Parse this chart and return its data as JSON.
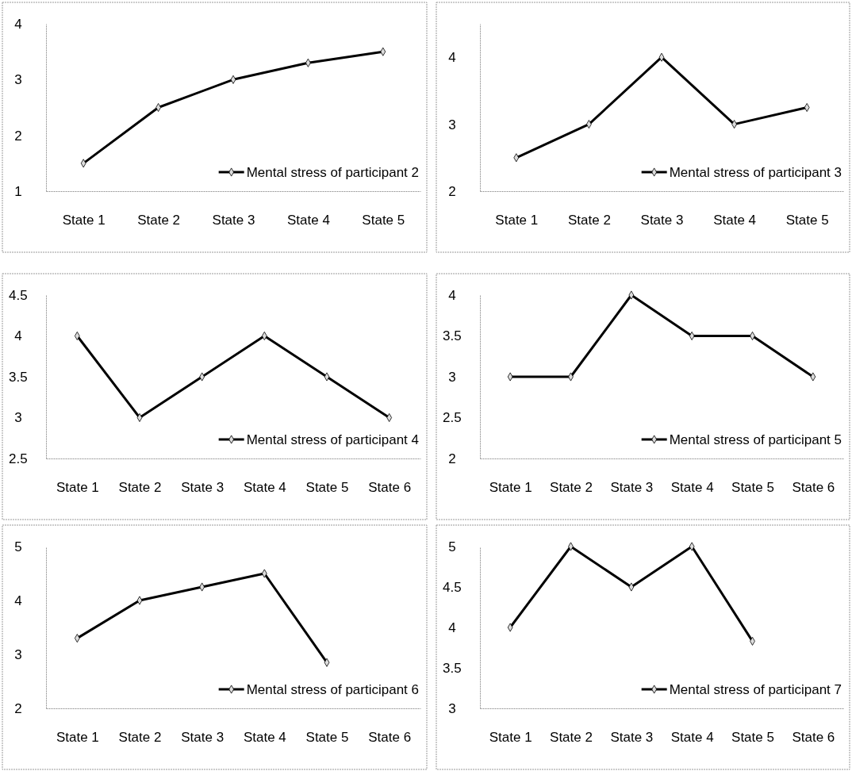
{
  "chart_data": [
    {
      "type": "line",
      "categories": [
        "State 1",
        "State 2",
        "State 3",
        "State 4",
        "State 5"
      ],
      "series": [
        {
          "name": "Mental stress of participant 2",
          "color": "#000000",
          "values": [
            1.5,
            2.5,
            3,
            3.3,
            3.5
          ]
        }
      ],
      "ylim": [
        1,
        4
      ],
      "yticks": [
        1,
        2,
        3,
        4
      ],
      "legend": "bottom right",
      "marker": "diamond",
      "grid": false
    },
    {
      "type": "line",
      "categories": [
        "State 1",
        "State 2",
        "State 3",
        "State 4",
        "State 5"
      ],
      "series": [
        {
          "name": "Mental stress of participant 3",
          "color": "#000000",
          "values": [
            2.5,
            3,
            4,
            3,
            3.25
          ]
        }
      ],
      "ylim": [
        2,
        4.5
      ],
      "yticks": [
        2,
        3,
        4
      ],
      "legend": "bottom right",
      "marker": "diamond",
      "grid": false
    },
    {
      "type": "line",
      "categories": [
        "State 1",
        "State 2",
        "State 3",
        "State 4",
        "State 5",
        "State 6"
      ],
      "series": [
        {
          "name": "Mental stress of participant 4",
          "color": "#000000",
          "values": [
            4,
            3,
            3.5,
            4,
            3.5,
            3
          ]
        }
      ],
      "ylim": [
        2.5,
        4.5
      ],
      "yticks": [
        2.5,
        3,
        3.5,
        4,
        4.5
      ],
      "legend": "bottom right",
      "marker": "diamond",
      "grid": false
    },
    {
      "type": "line",
      "categories": [
        "State 1",
        "State 2",
        "State 3",
        "State 4",
        "State 5",
        "State 6"
      ],
      "series": [
        {
          "name": "Mental stress of participant 5",
          "color": "#000000",
          "values": [
            3,
            3,
            4,
            3.5,
            3.5,
            3
          ]
        }
      ],
      "ylim": [
        2,
        4
      ],
      "yticks": [
        2,
        2.5,
        3,
        3.5,
        4
      ],
      "legend": "bottom right",
      "marker": "diamond",
      "grid": false
    },
    {
      "type": "line",
      "categories": [
        "State 1",
        "State 2",
        "State 3",
        "State 4",
        "State 5",
        "State 6"
      ],
      "series": [
        {
          "name": "Mental stress of participant 6",
          "color": "#000000",
          "values": [
            3.3,
            4,
            4.25,
            4.5,
            2.85,
            null
          ]
        }
      ],
      "ylim": [
        2,
        5
      ],
      "yticks": [
        2,
        3,
        4,
        5
      ],
      "legend": "bottom right",
      "marker": "diamond",
      "grid": false
    },
    {
      "type": "line",
      "categories": [
        "State 1",
        "State 2",
        "State 3",
        "State 4",
        "State 5",
        "State 6"
      ],
      "series": [
        {
          "name": "Mental stress of participant 7",
          "color": "#000000",
          "values": [
            4,
            5,
            4.5,
            5,
            3.83,
            null
          ]
        }
      ],
      "ylim": [
        3,
        5
      ],
      "yticks": [
        3,
        3.5,
        4,
        4.5,
        5
      ],
      "legend": "bottom right",
      "marker": "diamond",
      "grid": false
    }
  ]
}
